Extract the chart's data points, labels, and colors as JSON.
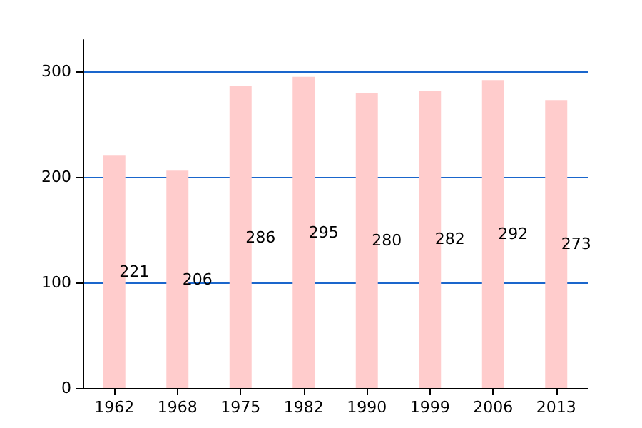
{
  "chart_data": {
    "type": "bar",
    "categories": [
      "1962",
      "1968",
      "1975",
      "1982",
      "1990",
      "1999",
      "2006",
      "2013"
    ],
    "values": [
      221,
      206,
      286,
      295,
      280,
      282,
      292,
      273
    ],
    "color": "#ffcccc",
    "data_labels": true,
    "ylim": [
      0,
      330
    ],
    "yticks": [
      0,
      100,
      200,
      300
    ],
    "grid": "y"
  }
}
